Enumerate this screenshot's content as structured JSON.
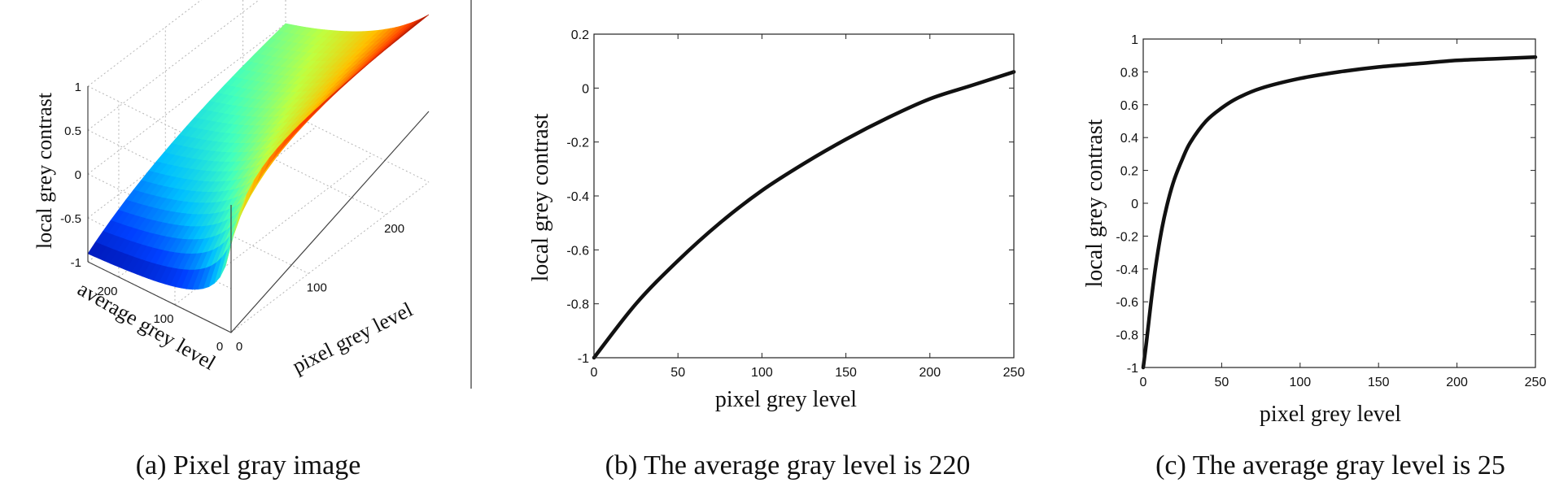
{
  "chart_data": [
    {
      "type": "surface",
      "caption": "(a) Pixel gray image",
      "xlabel": "pixel grey level",
      "ylabel": "average grey level",
      "zlabel": "local grey contrast",
      "xticks": [
        "0",
        "100",
        "200"
      ],
      "yticks": [
        "0",
        "100",
        "200"
      ],
      "zticks": [
        "-1",
        "-0.5",
        "0",
        "0.5",
        "1"
      ],
      "xlim": [
        0,
        255
      ],
      "ylim": [
        0,
        255
      ],
      "zlim": [
        -1,
        1
      ],
      "grid": true,
      "colormap": [
        "#00008f",
        "#0040ff",
        "#00c0ff",
        "#40ffbf",
        "#bfff40",
        "#ffc000",
        "#ff4000",
        "#800000"
      ]
    },
    {
      "type": "line",
      "caption": "(b) The average gray level is 220",
      "xlabel": "pixel grey level",
      "ylabel": "local grey contrast",
      "xlim": [
        0,
        250
      ],
      "ylim": [
        -1,
        0.2
      ],
      "xticks": [
        0,
        50,
        100,
        150,
        200,
        250
      ],
      "yticks": [
        -1,
        -0.8,
        -0.6,
        -0.4,
        -0.2,
        0,
        0.2
      ],
      "ytick_labels": [
        "-1",
        "-0.8",
        "-0.6",
        "-0.4",
        "-0.2",
        "0",
        "0.2"
      ],
      "series": [
        {
          "x": [
            0,
            25,
            50,
            75,
            100,
            125,
            150,
            175,
            200,
            225,
            250
          ],
          "y": [
            -1,
            -0.8,
            -0.64,
            -0.5,
            -0.38,
            -0.28,
            -0.19,
            -0.11,
            -0.04,
            0.01,
            0.06
          ]
        }
      ]
    },
    {
      "type": "line",
      "caption": "(c) The average gray level is 25",
      "xlabel": "pixel grey level",
      "ylabel": "local grey contrast",
      "xlim": [
        0,
        250
      ],
      "ylim": [
        -1,
        1
      ],
      "xticks": [
        0,
        50,
        100,
        150,
        200,
        250
      ],
      "yticks": [
        -1,
        -0.8,
        -0.6,
        -0.4,
        -0.2,
        0,
        0.2,
        0.4,
        0.6,
        0.8,
        1
      ],
      "ytick_labels": [
        "-1",
        "-0.8",
        "-0.6",
        "-0.4",
        "-0.2",
        "0",
        "0.2",
        "0.4",
        "0.6",
        "0.8",
        "1"
      ],
      "series": [
        {
          "x": [
            0,
            2,
            5,
            8,
            12,
            16,
            20,
            25,
            30,
            40,
            50,
            60,
            75,
            100,
            125,
            150,
            175,
            200,
            225,
            250
          ],
          "y": [
            -1,
            -0.85,
            -0.6,
            -0.38,
            -0.15,
            0.02,
            0.15,
            0.27,
            0.37,
            0.5,
            0.58,
            0.64,
            0.7,
            0.76,
            0.8,
            0.83,
            0.85,
            0.87,
            0.88,
            0.89
          ]
        }
      ]
    }
  ]
}
